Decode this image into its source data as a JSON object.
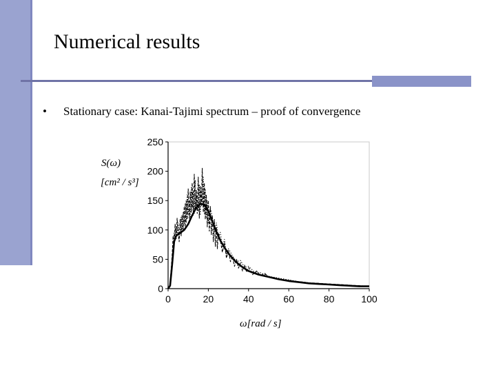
{
  "slide": {
    "title": "Numerical results",
    "bullet": "Stationary case: Kanai-Tajimi spectrum – proof of convergence",
    "bullet_marker": "•"
  },
  "colors": {
    "accent": "#9aa3d0",
    "rule": "#6f73a6"
  },
  "chart_data": {
    "type": "line",
    "ylabel_line1": "S(ω)",
    "ylabel_line2": "[cm² / s³]",
    "xlabel": "ω[rad / s]",
    "xlim": [
      0,
      100
    ],
    "ylim": [
      0,
      250
    ],
    "x_ticks": [
      "0",
      "20",
      "40",
      "60",
      "80",
      "100"
    ],
    "y_ticks": [
      "0",
      "50",
      "100",
      "150",
      "200",
      "250"
    ],
    "series": [
      {
        "style": "solid",
        "x": [
          0,
          1,
          2,
          3,
          4,
          6,
          8,
          10,
          12,
          14,
          16,
          18,
          20,
          22,
          24,
          26,
          28,
          30,
          33,
          36,
          40,
          45,
          50,
          55,
          60,
          65,
          70,
          75,
          80,
          85,
          90,
          95,
          100
        ],
        "y": [
          0,
          5,
          40,
          80,
          90,
          95,
          100,
          110,
          125,
          138,
          145,
          143,
          132,
          115,
          97,
          82,
          70,
          60,
          48,
          39,
          30,
          24,
          20,
          16,
          13,
          11,
          9,
          8,
          7,
          6,
          5,
          4,
          4
        ]
      },
      {
        "style": "dashed",
        "x": [
          0,
          1,
          2,
          2.5,
          3,
          3.5,
          4,
          4.5,
          5,
          5.5,
          6,
          6.5,
          7,
          7.5,
          8,
          8.5,
          9,
          9.5,
          10,
          10.5,
          11,
          11.5,
          12,
          12.5,
          13,
          13.5,
          14,
          14.5,
          15,
          15.5,
          16,
          16.5,
          17,
          17.5,
          18,
          18.5,
          19,
          19.5,
          20,
          20.5,
          21,
          21.5,
          22,
          22.5,
          23,
          23.5,
          24,
          24.5,
          25,
          26,
          27,
          28,
          29,
          30,
          31,
          32,
          33,
          34,
          35,
          36,
          37,
          38,
          39,
          40,
          42,
          44,
          46,
          48,
          50,
          53,
          56,
          60,
          65,
          70,
          75,
          80,
          85,
          90,
          95,
          100
        ],
        "y": [
          0,
          8,
          55,
          90,
          75,
          110,
          85,
          120,
          95,
          80,
          118,
          90,
          125,
          100,
          140,
          105,
          150,
          118,
          170,
          120,
          165,
          130,
          180,
          125,
          195,
          135,
          168,
          128,
          190,
          120,
          175,
          140,
          205,
          130,
          180,
          118,
          160,
          105,
          150,
          98,
          140,
          92,
          125,
          80,
          118,
          72,
          105,
          68,
          95,
          82,
          62,
          78,
          52,
          65,
          46,
          55,
          38,
          50,
          35,
          44,
          30,
          40,
          28,
          36,
          24,
          30,
          22,
          26,
          20,
          18,
          15,
          14,
          12,
          10,
          9,
          8,
          7,
          6,
          5,
          4
        ]
      },
      {
        "style": "dotted",
        "x": [
          0,
          1,
          2,
          3,
          3.5,
          4,
          4.5,
          5,
          5.5,
          6,
          6.5,
          7,
          7.5,
          8,
          8.5,
          9,
          9.5,
          10,
          10.5,
          11,
          11.5,
          12,
          12.5,
          13,
          13.5,
          14,
          14.5,
          15,
          15.5,
          16,
          16.5,
          17,
          17.5,
          18,
          18.5,
          19,
          19.5,
          20,
          21,
          22,
          23,
          24,
          25,
          26,
          27,
          28,
          29,
          30,
          32,
          34,
          36,
          38,
          40,
          43,
          46,
          50,
          55,
          60,
          65,
          70,
          75,
          80,
          85,
          90,
          95,
          100
        ],
        "y": [
          0,
          6,
          45,
          95,
          82,
          105,
          92,
          112,
          88,
          102,
          122,
          96,
          130,
          110,
          145,
          112,
          160,
          125,
          150,
          115,
          172,
          138,
          165,
          128,
          185,
          140,
          160,
          132,
          178,
          125,
          168,
          148,
          190,
          128,
          170,
          122,
          150,
          112,
          138,
          122,
          102,
          112,
          88,
          96,
          70,
          84,
          58,
          68,
          56,
          46,
          48,
          36,
          38,
          28,
          27,
          21,
          18,
          15,
          12,
          10,
          8,
          7,
          6,
          5,
          4,
          4
        ]
      }
    ]
  }
}
